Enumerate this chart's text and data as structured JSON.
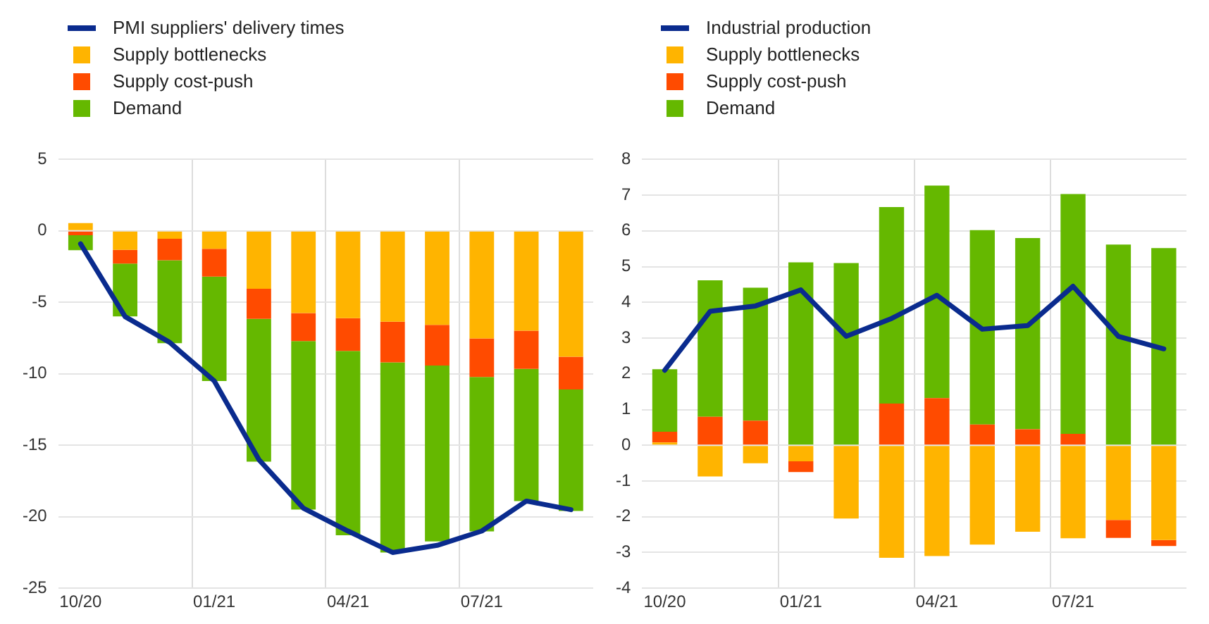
{
  "chart_data": [
    {
      "type": "bar",
      "stacked": true,
      "categories": [
        "10/20",
        null,
        null,
        "01/21",
        null,
        null,
        "04/21",
        null,
        null,
        "07/21",
        null,
        null
      ],
      "ylim": [
        -25,
        5
      ],
      "yticks": [
        -25,
        -20,
        -15,
        -10,
        -5,
        0,
        5
      ],
      "grid": true,
      "legend": "top left",
      "series": [
        {
          "name": "PMI suppliers' delivery times",
          "type": "line",
          "color": "#0a2b8e",
          "values": [
            -0.9,
            -6.0,
            -7.8,
            -10.5,
            -16.0,
            -19.4,
            -21.0,
            -22.5,
            -22.0,
            -21.0,
            -18.9,
            -19.5
          ]
        },
        {
          "name": "Supply bottlenecks",
          "color": "#ffb400",
          "values": [
            0.55,
            -1.33,
            -0.55,
            -1.25,
            -4.05,
            -5.75,
            -6.1,
            -6.35,
            -6.57,
            -7.52,
            -6.98,
            -8.8
          ]
        },
        {
          "name": "Supply cost-push",
          "color": "#ff4b00",
          "values": [
            -0.3,
            -0.95,
            -1.5,
            -1.95,
            -2.1,
            -1.95,
            -2.3,
            -2.85,
            -2.85,
            -2.7,
            -2.67,
            -2.3
          ]
        },
        {
          "name": "Demand",
          "color": "#65b800",
          "values": [
            -1.05,
            -3.7,
            -5.8,
            -7.3,
            -10.0,
            -11.8,
            -12.9,
            -13.3,
            -12.3,
            -10.8,
            -9.25,
            -8.5
          ]
        }
      ]
    },
    {
      "type": "bar",
      "stacked": true,
      "categories": [
        "10/20",
        null,
        null,
        "01/21",
        null,
        null,
        "04/21",
        null,
        null,
        "07/21",
        null,
        null
      ],
      "ylim": [
        -4,
        8
      ],
      "yticks": [
        -4,
        -3,
        -2,
        -1,
        0,
        1,
        2,
        3,
        4,
        5,
        6,
        7,
        8
      ],
      "grid": true,
      "legend": "top left",
      "series": [
        {
          "name": "Industrial production",
          "type": "line",
          "color": "#0a2b8e",
          "values": [
            2.1,
            3.75,
            3.9,
            4.35,
            3.05,
            3.55,
            4.2,
            3.25,
            3.35,
            4.45,
            3.05,
            2.7
          ]
        },
        {
          "name": "Supply bottlenecks",
          "color": "#ffb400",
          "values": [
            0.08,
            -0.87,
            -0.5,
            -0.45,
            -2.05,
            -3.15,
            -3.1,
            -2.78,
            -2.42,
            -2.6,
            -2.09,
            -2.65
          ]
        },
        {
          "name": "Supply cost-push",
          "color": "#ff4b00",
          "values": [
            0.3,
            0.8,
            0.69,
            -0.3,
            0,
            1.17,
            1.32,
            0.58,
            0.45,
            0.32,
            -0.5,
            -0.17
          ]
        },
        {
          "name": "Demand",
          "color": "#65b800",
          "values": [
            1.75,
            3.82,
            3.72,
            5.12,
            5.1,
            5.5,
            5.95,
            5.44,
            5.35,
            6.71,
            5.62,
            5.52
          ]
        }
      ]
    }
  ]
}
